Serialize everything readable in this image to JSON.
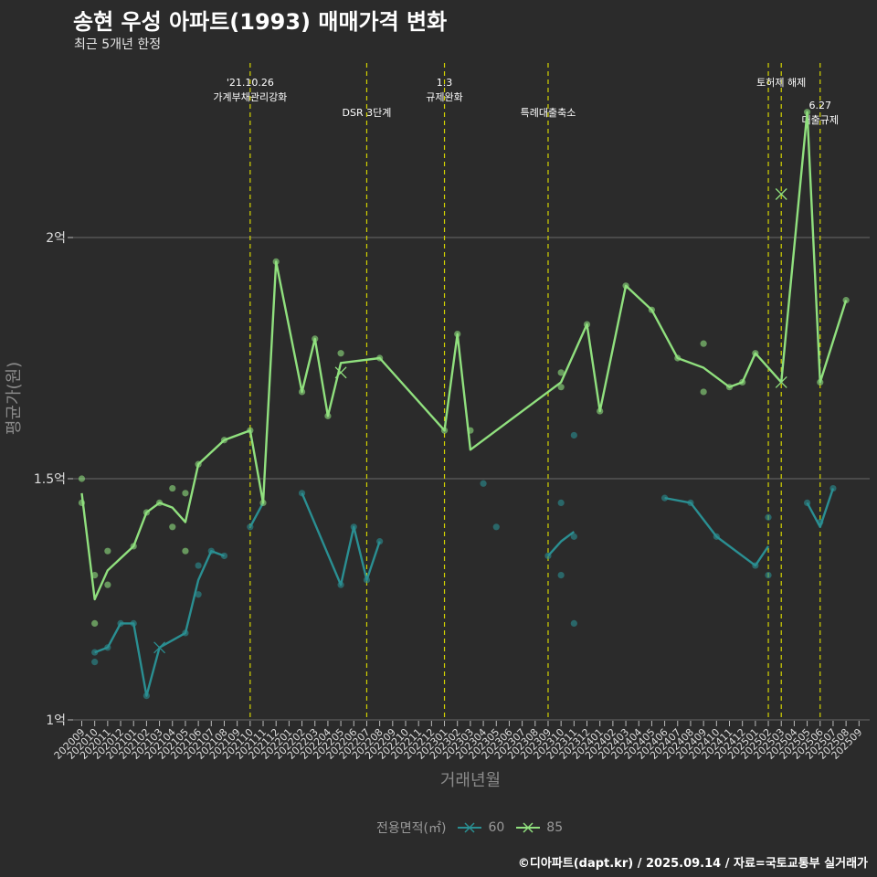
{
  "title": "송현 우성 아파트(1993) 매매가격 변화",
  "subtitle": "최근 5개년 한정",
  "caption": "©디아파트(dapt.kr) / 2025.09.14 / 자료=국토교통부 실거래가",
  "chart_data": {
    "type": "line",
    "xlabel": "거래년월",
    "ylabel": "평균가(원)",
    "ylim": [
      0.98,
      2.5
    ],
    "y_ticks": [
      {
        "value": 1.0,
        "label": "1억"
      },
      {
        "value": 1.5,
        "label": "1.5억"
      },
      {
        "value": 2.0,
        "label": "2억"
      }
    ],
    "categories": [
      "202009",
      "202010",
      "202011",
      "202012",
      "202101",
      "202102",
      "202103",
      "202104",
      "202105",
      "202106",
      "202107",
      "202108",
      "202109",
      "202110",
      "202111",
      "202112",
      "202201",
      "202202",
      "202203",
      "202204",
      "202205",
      "202206",
      "202207",
      "202208",
      "202209",
      "202210",
      "202211",
      "202212",
      "202301",
      "202302",
      "202303",
      "202304",
      "202305",
      "202306",
      "202307",
      "202308",
      "202309",
      "202310",
      "202311",
      "202312",
      "202401",
      "202402",
      "202403",
      "202404",
      "202405",
      "202406",
      "202407",
      "202408",
      "202409",
      "202410",
      "202411",
      "202412",
      "202501",
      "202502",
      "202503",
      "202504",
      "202505",
      "202506",
      "202507",
      "202508",
      "202509"
    ],
    "legend_title": "전용면적(㎡)",
    "series": [
      {
        "name": "60",
        "color": "#2a8f92",
        "line": [
          {
            "x": "202010",
            "y": 1.14
          },
          {
            "x": "202011",
            "y": 1.15
          },
          {
            "x": "202012",
            "y": 1.2
          },
          {
            "x": "202101",
            "y": 1.2
          },
          {
            "x": "202102",
            "y": 1.05
          },
          {
            "x": "202103",
            "y": 1.15
          },
          {
            "x": "202105",
            "y": 1.18
          },
          {
            "x": "202106",
            "y": 1.29
          },
          {
            "x": "202107",
            "y": 1.35
          },
          {
            "x": "202108",
            "y": 1.34
          },
          null,
          {
            "x": "202110",
            "y": 1.4
          },
          {
            "x": "202111",
            "y": 1.45
          },
          null,
          {
            "x": "202202",
            "y": 1.47
          },
          {
            "x": "202205",
            "y": 1.28
          },
          {
            "x": "202206",
            "y": 1.4
          },
          {
            "x": "202207",
            "y": 1.29
          },
          {
            "x": "202208",
            "y": 1.37
          },
          null,
          {
            "x": "202309",
            "y": 1.34
          },
          {
            "x": "202310",
            "y": 1.37
          },
          {
            "x": "202311",
            "y": 1.39
          },
          null,
          {
            "x": "202406",
            "y": 1.46
          },
          {
            "x": "202408",
            "y": 1.45
          },
          {
            "x": "202410",
            "y": 1.38
          },
          {
            "x": "202501",
            "y": 1.32
          },
          {
            "x": "202502",
            "y": 1.36
          },
          null,
          {
            "x": "202505",
            "y": 1.45
          },
          {
            "x": "202506",
            "y": 1.4
          },
          {
            "x": "202507",
            "y": 1.48
          }
        ],
        "points": [
          {
            "x": "202010",
            "y": 1.12
          },
          {
            "x": "202010",
            "y": 1.14
          },
          {
            "x": "202011",
            "y": 1.15
          },
          {
            "x": "202012",
            "y": 1.2
          },
          {
            "x": "202101",
            "y": 1.2
          },
          {
            "x": "202102",
            "y": 1.05
          },
          {
            "x": "202105",
            "y": 1.18
          },
          {
            "x": "202106",
            "y": 1.26
          },
          {
            "x": "202106",
            "y": 1.32
          },
          {
            "x": "202107",
            "y": 1.35
          },
          {
            "x": "202108",
            "y": 1.34
          },
          {
            "x": "202110",
            "y": 1.4
          },
          {
            "x": "202202",
            "y": 1.47
          },
          {
            "x": "202205",
            "y": 1.28
          },
          {
            "x": "202206",
            "y": 1.4
          },
          {
            "x": "202207",
            "y": 1.29
          },
          {
            "x": "202208",
            "y": 1.37
          },
          {
            "x": "202304",
            "y": 1.49
          },
          {
            "x": "202305",
            "y": 1.4
          },
          {
            "x": "202309",
            "y": 1.34
          },
          {
            "x": "202310",
            "y": 1.3
          },
          {
            "x": "202310",
            "y": 1.45
          },
          {
            "x": "202311",
            "y": 1.38
          },
          {
            "x": "202311",
            "y": 1.59
          },
          {
            "x": "202311",
            "y": 1.2
          },
          {
            "x": "202406",
            "y": 1.46
          },
          {
            "x": "202408",
            "y": 1.45
          },
          {
            "x": "202410",
            "y": 1.38
          },
          {
            "x": "202501",
            "y": 1.32
          },
          {
            "x": "202502",
            "y": 1.42
          },
          {
            "x": "202502",
            "y": 1.3
          },
          {
            "x": "202505",
            "y": 1.45
          },
          {
            "x": "202506",
            "y": 1.41
          },
          {
            "x": "202507",
            "y": 1.48
          }
        ],
        "cross_points": [
          {
            "x": "202103",
            "y": 1.15
          }
        ]
      },
      {
        "name": "85",
        "color": "#90e07e",
        "line": [
          {
            "x": "202009",
            "y": 1.47
          },
          {
            "x": "202010",
            "y": 1.25
          },
          {
            "x": "202011",
            "y": 1.31
          },
          {
            "x": "202101",
            "y": 1.36
          },
          {
            "x": "202102",
            "y": 1.43
          },
          {
            "x": "202103",
            "y": 1.45
          },
          {
            "x": "202104",
            "y": 1.44
          },
          {
            "x": "202105",
            "y": 1.41
          },
          {
            "x": "202106",
            "y": 1.53
          },
          {
            "x": "202108",
            "y": 1.58
          },
          {
            "x": "202110",
            "y": 1.6
          },
          {
            "x": "202111",
            "y": 1.45
          },
          {
            "x": "202112",
            "y": 1.95
          },
          {
            "x": "202202",
            "y": 1.68
          },
          {
            "x": "202203",
            "y": 1.79
          },
          {
            "x": "202204",
            "y": 1.63
          },
          {
            "x": "202205",
            "y": 1.74
          },
          {
            "x": "202208",
            "y": 1.75
          },
          {
            "x": "202301",
            "y": 1.6
          },
          {
            "x": "202302",
            "y": 1.8
          },
          {
            "x": "202303",
            "y": 1.56
          },
          {
            "x": "202310",
            "y": 1.7
          },
          {
            "x": "202312",
            "y": 1.82
          },
          {
            "x": "202401",
            "y": 1.64
          },
          {
            "x": "202403",
            "y": 1.9
          },
          {
            "x": "202405",
            "y": 1.85
          },
          {
            "x": "202407",
            "y": 1.75
          },
          {
            "x": "202409",
            "y": 1.73
          },
          {
            "x": "202411",
            "y": 1.69
          },
          {
            "x": "202412",
            "y": 1.7
          },
          {
            "x": "202501",
            "y": 1.76
          },
          {
            "x": "202503",
            "y": 1.7
          },
          {
            "x": "202505",
            "y": 2.26
          },
          {
            "x": "202506",
            "y": 1.7
          },
          {
            "x": "202508",
            "y": 1.87
          }
        ],
        "points": [
          {
            "x": "202009",
            "y": 1.5
          },
          {
            "x": "202009",
            "y": 1.45
          },
          {
            "x": "202010",
            "y": 1.3
          },
          {
            "x": "202010",
            "y": 1.2
          },
          {
            "x": "202011",
            "y": 1.35
          },
          {
            "x": "202011",
            "y": 1.28
          },
          {
            "x": "202101",
            "y": 1.36
          },
          {
            "x": "202102",
            "y": 1.43
          },
          {
            "x": "202103",
            "y": 1.45
          },
          {
            "x": "202104",
            "y": 1.48
          },
          {
            "x": "202104",
            "y": 1.4
          },
          {
            "x": "202105",
            "y": 1.47
          },
          {
            "x": "202105",
            "y": 1.35
          },
          {
            "x": "202106",
            "y": 1.53
          },
          {
            "x": "202108",
            "y": 1.58
          },
          {
            "x": "202110",
            "y": 1.6
          },
          {
            "x": "202111",
            "y": 1.45
          },
          {
            "x": "202112",
            "y": 1.95
          },
          {
            "x": "202202",
            "y": 1.68
          },
          {
            "x": "202203",
            "y": 1.79
          },
          {
            "x": "202204",
            "y": 1.63
          },
          {
            "x": "202205",
            "y": 1.76
          },
          {
            "x": "202208",
            "y": 1.75
          },
          {
            "x": "202301",
            "y": 1.6
          },
          {
            "x": "202302",
            "y": 1.8
          },
          {
            "x": "202303",
            "y": 1.6
          },
          {
            "x": "202310",
            "y": 1.72
          },
          {
            "x": "202310",
            "y": 1.69
          },
          {
            "x": "202312",
            "y": 1.82
          },
          {
            "x": "202401",
            "y": 1.64
          },
          {
            "x": "202403",
            "y": 1.9
          },
          {
            "x": "202405",
            "y": 1.85
          },
          {
            "x": "202407",
            "y": 1.75
          },
          {
            "x": "202409",
            "y": 1.78
          },
          {
            "x": "202409",
            "y": 1.68
          },
          {
            "x": "202411",
            "y": 1.69
          },
          {
            "x": "202412",
            "y": 1.7
          },
          {
            "x": "202501",
            "y": 1.76
          },
          {
            "x": "202505",
            "y": 2.26
          },
          {
            "x": "202506",
            "y": 1.7
          },
          {
            "x": "202508",
            "y": 1.87
          }
        ],
        "cross_points": [
          {
            "x": "202205",
            "y": 1.72
          },
          {
            "x": "202503",
            "y": 2.09
          },
          {
            "x": "202503",
            "y": 1.7
          }
        ]
      }
    ],
    "events": [
      {
        "x": "202110",
        "lines": [
          "'21.10.26",
          "가계부채관리강화"
        ],
        "level": 1
      },
      {
        "x": "202207",
        "lines": [
          "DSR 3단계"
        ],
        "level": 2
      },
      {
        "x": "202301",
        "lines": [
          "1.3",
          "규제완화"
        ],
        "level": 1
      },
      {
        "x": "202309",
        "lines": [
          "특례대출축소"
        ],
        "level": 2
      },
      {
        "x": "202502",
        "lines": [],
        "level": 0
      },
      {
        "x": "202503",
        "lines": [
          "토허제 해제"
        ],
        "level": 1
      },
      {
        "x": "202506",
        "lines": [
          "6.27",
          "대출규제"
        ],
        "level": 3
      }
    ]
  }
}
